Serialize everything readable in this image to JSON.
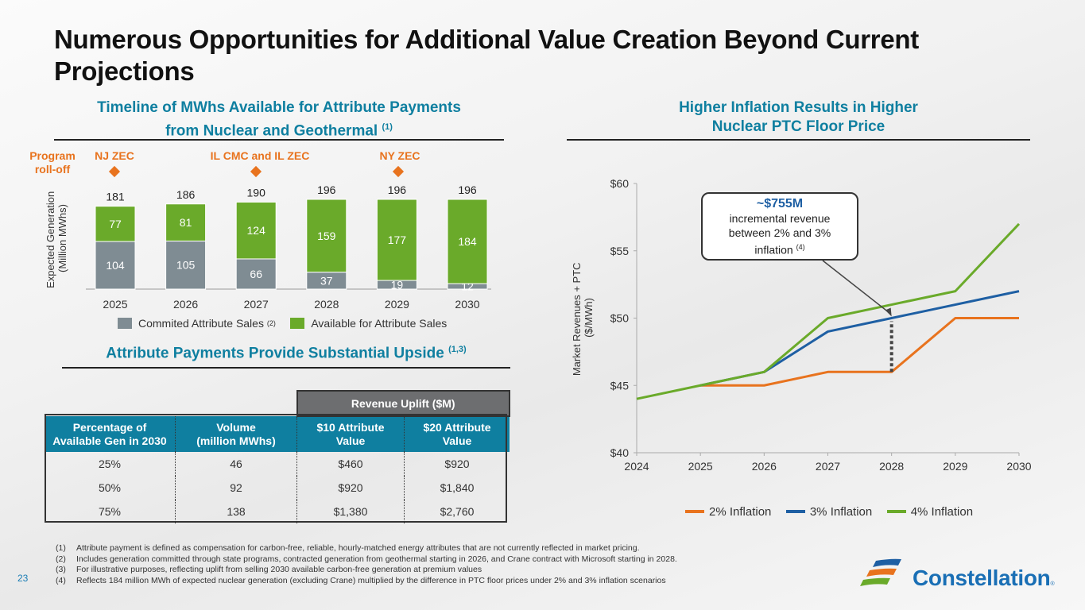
{
  "page": {
    "title": "Numerous Opportunities for Additional Value Creation Beyond Current Projections",
    "page_number": "23",
    "logo_text": "Constellation",
    "logo_mark": "®"
  },
  "left_chart": {
    "title_line1": "Timeline of MWhs Available for Attribute Payments",
    "title_line2": "from Nuclear and Geothermal",
    "title_note": "(1)",
    "program_label_line1": "Program",
    "program_label_line2": "roll-off",
    "markers": [
      {
        "label": "NJ ZEC",
        "year": "2025"
      },
      {
        "label": "IL CMC and IL ZEC",
        "year": "2027"
      },
      {
        "label": "NY ZEC",
        "year": "2029"
      }
    ],
    "legend": [
      {
        "label": "Commited Attribute Sales",
        "note": "(2)",
        "color": "#7f8c93"
      },
      {
        "label": "Available for Attribute Sales",
        "note": "",
        "color": "#6aaa2a"
      }
    ]
  },
  "table_section": {
    "title": "Attribute Payments Provide Substantial Upside",
    "title_note": "(1,3)",
    "group_header": "Revenue Uplift ($M)",
    "columns": [
      [
        "Percentage of",
        "Available Gen in 2030"
      ],
      [
        "Volume",
        "(million MWhs)"
      ],
      [
        "$10 Attribute",
        "Value"
      ],
      [
        "$20 Attribute",
        "Value"
      ]
    ],
    "rows": [
      [
        "25%",
        "46",
        "$460",
        "$920"
      ],
      [
        "50%",
        "92",
        "$920",
        "$1,840"
      ],
      [
        "75%",
        "138",
        "$1,380",
        "$2,760"
      ]
    ]
  },
  "right_chart": {
    "title_line1": "Higher Inflation Results in Higher",
    "title_line2": "Nuclear PTC Floor Price",
    "callout_value": "~$755M",
    "callout_line1": "incremental revenue",
    "callout_line2": "between 2% and 3%",
    "callout_line3": "inflation",
    "callout_note": "(4)"
  },
  "footnotes": [
    {
      "num": "(1)",
      "text": "Attribute payment is defined as compensation for carbon-free, reliable, hourly-matched energy attributes that are not currently reflected in market pricing."
    },
    {
      "num": "(2)",
      "text": "Includes generation committed through state programs, contracted generation from geothermal starting in 2026, and Crane contract with Microsoft starting in 2028."
    },
    {
      "num": "(3)",
      "text": "For illustrative purposes, reflecting uplift from selling 2030 available carbon-free generation at premium values"
    },
    {
      "num": "(4)",
      "text": "Reflects 184 million MWh of expected nuclear generation (excluding Crane) multiplied by the difference in PTC floor prices under 2% and 3% inflation scenarios"
    }
  ],
  "colors": {
    "accent_blue": "#0f7fa0",
    "orange": "#e8731e",
    "gray_bar": "#7f8c93",
    "green_bar": "#6aaa2a",
    "line_2pct": "#e8731e",
    "line_3pct": "#1e5fa3",
    "line_4pct": "#6aaa2a"
  },
  "chart_data": [
    {
      "type": "bar",
      "stacked": true,
      "title": "Timeline of MWhs Available for Attribute Payments from Nuclear and Geothermal (1)",
      "xlabel": "",
      "ylabel": "Expected Generation (Million MWhs)",
      "categories": [
        "2025",
        "2026",
        "2027",
        "2028",
        "2029",
        "2030"
      ],
      "series": [
        {
          "name": "Commited Attribute Sales (2)",
          "values": [
            104,
            105,
            66,
            37,
            19,
            12
          ]
        },
        {
          "name": "Available for Attribute Sales",
          "values": [
            77,
            81,
            124,
            159,
            177,
            184
          ]
        }
      ],
      "totals": [
        181,
        186,
        190,
        196,
        196,
        196
      ],
      "ylim": [
        0,
        196
      ],
      "grid": false,
      "legend": "bottom",
      "annotations": [
        {
          "text": "NJ ZEC",
          "x": "2025"
        },
        {
          "text": "IL CMC and IL ZEC",
          "x": "2027"
        },
        {
          "text": "NY ZEC",
          "x": "2029"
        },
        {
          "text": "Program roll-off",
          "x": "left"
        }
      ]
    },
    {
      "type": "line",
      "title": "Higher Inflation Results in Higher Nuclear PTC Floor Price",
      "xlabel": "",
      "ylabel": "Market Revenues + PTC ($/MWh)",
      "x": [
        "2024",
        "2025",
        "2026",
        "2027",
        "2028",
        "2029",
        "2030"
      ],
      "series": [
        {
          "name": "2% Inflation",
          "values": [
            null,
            45,
            45,
            46,
            46,
            50,
            50
          ]
        },
        {
          "name": "3% Inflation",
          "values": [
            null,
            45,
            46,
            49,
            50,
            51,
            52
          ]
        },
        {
          "name": "4% Inflation",
          "values": [
            44,
            45,
            46,
            50,
            51,
            52,
            57
          ]
        }
      ],
      "ylim": [
        40,
        60
      ],
      "yticks": [
        "$40",
        "$45",
        "$50",
        "$55",
        "$60"
      ],
      "grid": false,
      "legend": "bottom",
      "annotations": [
        {
          "text": "~$755M incremental revenue between 2% and 3% inflation (4)",
          "x": "2028",
          "between": [
            46,
            50
          ]
        }
      ]
    }
  ]
}
